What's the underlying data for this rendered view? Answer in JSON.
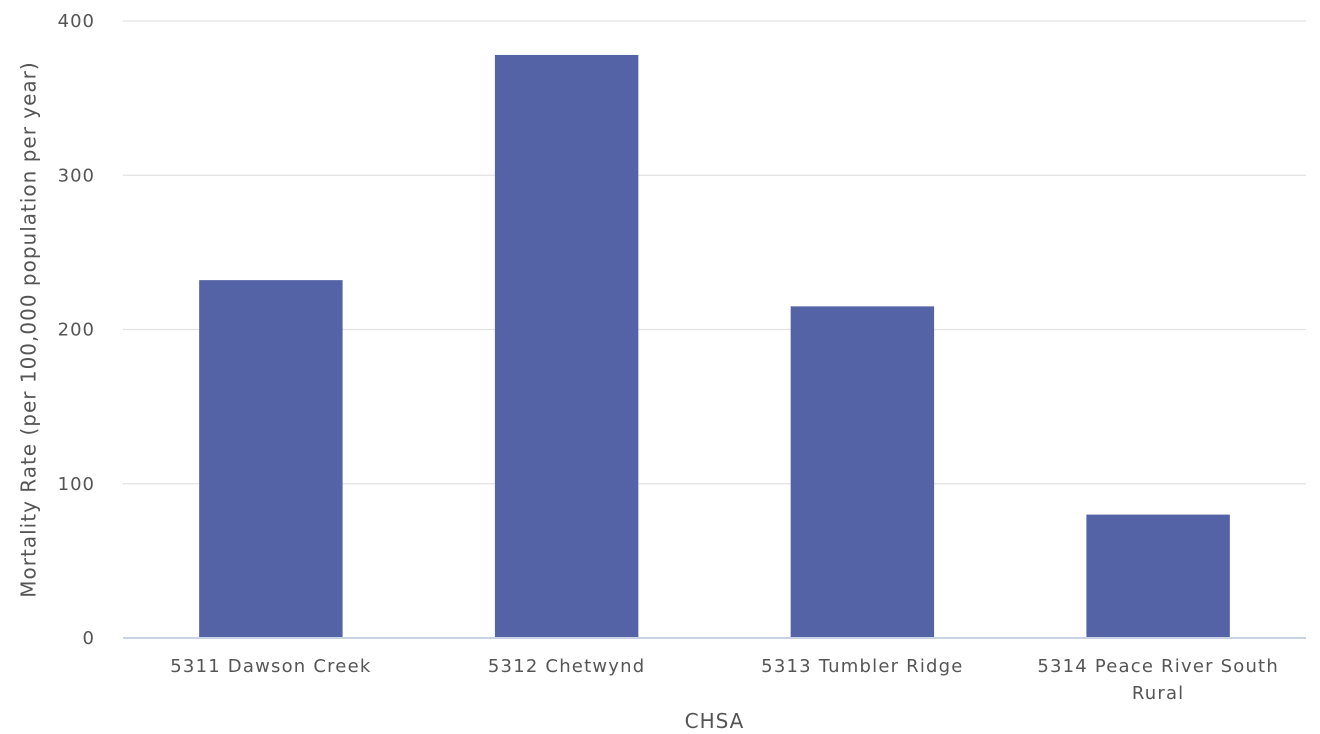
{
  "chart_data": {
    "type": "bar",
    "categories": [
      [
        "5311 Dawson Creek"
      ],
      [
        "5312 Chetwynd"
      ],
      [
        "5313 Tumbler Ridge"
      ],
      [
        "5314 Peace River South",
        "Rural"
      ]
    ],
    "values": [
      232,
      378,
      215,
      80
    ],
    "xlabel": "CHSA",
    "ylabel": "Mortality Rate (per 100,000 population per year)",
    "ylim": [
      0,
      400
    ],
    "yticks": [
      0,
      100,
      200,
      300,
      400
    ],
    "grid": true,
    "legend": "none",
    "colors": {
      "bar": "#5463a5",
      "grid": "#e3e3e3",
      "axis": "#c8d4e6",
      "text": "#555555"
    }
  }
}
